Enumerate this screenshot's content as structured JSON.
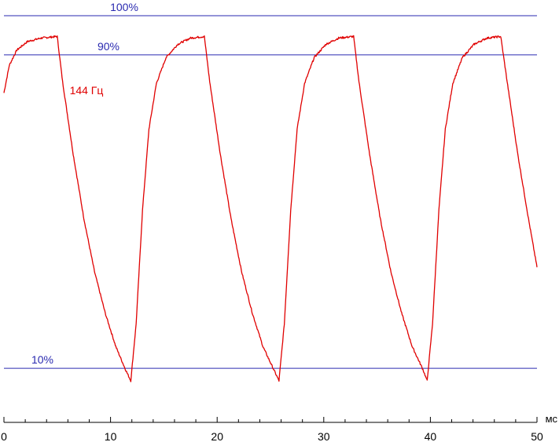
{
  "chart_data": {
    "type": "line",
    "x_unit": "мс",
    "xlim": [
      0,
      50
    ],
    "x_ticks": [
      "0",
      "10",
      "20",
      "30",
      "40",
      "50"
    ],
    "ylim": [
      0,
      105
    ],
    "grid": false,
    "reference_lines": [
      {
        "label": "100%",
        "value": 100,
        "color": "#2a2ab0"
      },
      {
        "label": "90%",
        "value": 90,
        "color": "#2a2ab0"
      },
      {
        "label": "10%",
        "value": 10,
        "color": "#2a2ab0"
      }
    ],
    "series": [
      {
        "name": "144 Гц",
        "color": "#e00000",
        "points": [
          [
            0,
            80.3
          ],
          [
            0.5,
            87.3
          ],
          [
            1.2,
            91.2
          ],
          [
            2.2,
            93.4
          ],
          [
            3.5,
            94.3
          ],
          [
            5.0,
            94.7
          ],
          [
            5.5,
            83.2
          ],
          [
            6.5,
            64.6
          ],
          [
            7.5,
            48.2
          ],
          [
            8.5,
            34.6
          ],
          [
            9.5,
            24.1
          ],
          [
            10.5,
            15.5
          ],
          [
            11.4,
            9.7
          ],
          [
            11.9,
            6.8
          ],
          [
            12.4,
            21.3
          ],
          [
            13.0,
            50.4
          ],
          [
            13.6,
            71.0
          ],
          [
            14.3,
            82.7
          ],
          [
            15.2,
            89.3
          ],
          [
            16.3,
            92.7
          ],
          [
            17.5,
            94.3
          ],
          [
            18.8,
            94.7
          ],
          [
            19.3,
            83.2
          ],
          [
            20.3,
            64.6
          ],
          [
            21.3,
            48.2
          ],
          [
            22.3,
            34.6
          ],
          [
            23.3,
            24.1
          ],
          [
            24.3,
            15.5
          ],
          [
            25.3,
            9.7
          ],
          [
            25.8,
            6.8
          ],
          [
            26.3,
            21.3
          ],
          [
            26.9,
            50.4
          ],
          [
            27.5,
            71.0
          ],
          [
            28.2,
            82.7
          ],
          [
            29.1,
            89.3
          ],
          [
            30.2,
            92.7
          ],
          [
            31.4,
            94.3
          ],
          [
            32.8,
            94.7
          ],
          [
            33.3,
            83.2
          ],
          [
            34.3,
            64.6
          ],
          [
            35.3,
            48.2
          ],
          [
            36.3,
            34.6
          ],
          [
            37.3,
            24.1
          ],
          [
            38.3,
            15.5
          ],
          [
            39.3,
            9.7
          ],
          [
            39.7,
            6.8
          ],
          [
            40.2,
            21.3
          ],
          [
            40.8,
            50.4
          ],
          [
            41.4,
            71.0
          ],
          [
            42.1,
            82.7
          ],
          [
            43.0,
            89.3
          ],
          [
            44.1,
            92.7
          ],
          [
            45.3,
            94.3
          ],
          [
            46.6,
            94.7
          ],
          [
            47.2,
            83.2
          ],
          [
            48.2,
            64.6
          ],
          [
            49.2,
            48.2
          ],
          [
            50,
            35.8
          ]
        ]
      }
    ]
  }
}
